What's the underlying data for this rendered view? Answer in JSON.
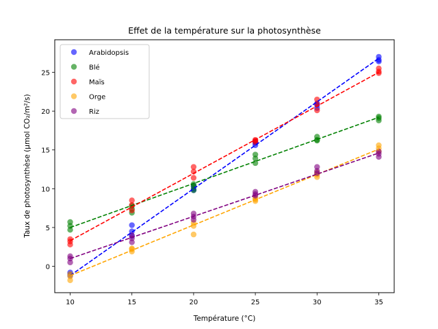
{
  "chart_data": {
    "type": "scatter",
    "title": "Effet de la température sur la photosynthèse",
    "xlabel": "Température (°C)",
    "ylabel": "Taux de photosynthèse (µmol CO₂/m²/s)",
    "xlim": [
      8.75,
      36.25
    ],
    "ylim": [
      -3.4,
      29.2
    ],
    "xticks": [
      10,
      15,
      20,
      25,
      30,
      35
    ],
    "yticks": [
      0,
      5,
      10,
      15,
      20,
      25
    ],
    "grid": false,
    "legend": "top-left",
    "trendlines": "dashed linear fit per series",
    "series": [
      {
        "name": "Arabidopsis",
        "color": "#0000ff",
        "points": [
          [
            10,
            -1.0
          ],
          [
            10,
            -0.8
          ],
          [
            10,
            -1.2
          ],
          [
            15,
            5.3
          ],
          [
            15,
            4.5
          ],
          [
            15,
            3.9
          ],
          [
            20,
            10.4
          ],
          [
            20,
            10.0
          ],
          [
            20,
            9.8
          ],
          [
            25,
            15.6
          ],
          [
            25,
            15.9
          ],
          [
            25,
            16.1
          ],
          [
            30,
            20.8
          ],
          [
            30,
            20.4
          ],
          [
            30,
            21.0
          ],
          [
            35,
            27.0
          ],
          [
            35,
            26.4
          ],
          [
            35,
            26.6
          ]
        ],
        "fit": [
          [
            10,
            -1.2
          ],
          [
            35,
            26.8
          ]
        ]
      },
      {
        "name": "Blé",
        "color": "#008000",
        "points": [
          [
            10,
            5.7
          ],
          [
            10,
            5.2
          ],
          [
            10,
            4.7
          ],
          [
            15,
            7.8
          ],
          [
            15,
            7.4
          ],
          [
            15,
            6.9
          ],
          [
            20,
            10.6
          ],
          [
            20,
            10.3
          ],
          [
            20,
            9.8
          ],
          [
            25,
            14.4
          ],
          [
            25,
            13.9
          ],
          [
            25,
            13.3
          ],
          [
            30,
            16.7
          ],
          [
            30,
            16.3
          ],
          [
            30,
            16.2
          ],
          [
            35,
            19.3
          ],
          [
            35,
            19.1
          ],
          [
            35,
            18.8
          ]
        ],
        "fit": [
          [
            10,
            5.0
          ],
          [
            35,
            19.2
          ]
        ]
      },
      {
        "name": "Maïs",
        "color": "#ff0000",
        "points": [
          [
            10,
            3.5
          ],
          [
            10,
            3.2
          ],
          [
            10,
            2.8
          ],
          [
            15,
            8.5
          ],
          [
            15,
            7.9
          ],
          [
            15,
            7.2
          ],
          [
            20,
            12.8
          ],
          [
            20,
            12.2
          ],
          [
            20,
            11.4
          ],
          [
            25,
            16.3
          ],
          [
            25,
            16.0
          ],
          [
            25,
            16.2
          ],
          [
            30,
            21.5
          ],
          [
            30,
            20.9
          ],
          [
            30,
            20.1
          ],
          [
            35,
            25.5
          ],
          [
            35,
            25.1
          ],
          [
            35,
            24.9
          ]
        ],
        "fit": [
          [
            10,
            3.3
          ],
          [
            35,
            25.0
          ]
        ]
      },
      {
        "name": "Orge",
        "color": "#ffa500",
        "points": [
          [
            10,
            -1.8
          ],
          [
            10,
            -1.0
          ],
          [
            10,
            -1.3
          ],
          [
            15,
            2.3
          ],
          [
            15,
            1.9
          ],
          [
            15,
            2.2
          ],
          [
            20,
            5.2
          ],
          [
            20,
            5.6
          ],
          [
            20,
            4.1
          ],
          [
            25,
            8.6
          ],
          [
            25,
            8.4
          ],
          [
            25,
            8.8
          ],
          [
            30,
            11.5
          ],
          [
            30,
            11.8
          ],
          [
            30,
            12.1
          ],
          [
            35,
            15.6
          ],
          [
            35,
            15.2
          ],
          [
            35,
            14.8
          ]
        ],
        "fit": [
          [
            10,
            -1.2
          ],
          [
            35,
            15.1
          ]
        ]
      },
      {
        "name": "Riz",
        "color": "#800080",
        "points": [
          [
            10,
            0.5
          ],
          [
            10,
            1.0
          ],
          [
            10,
            1.3
          ],
          [
            15,
            3.1
          ],
          [
            15,
            3.6
          ],
          [
            15,
            4.0
          ],
          [
            20,
            6.0
          ],
          [
            20,
            6.4
          ],
          [
            20,
            6.8
          ],
          [
            25,
            9.1
          ],
          [
            25,
            9.3
          ],
          [
            25,
            9.6
          ],
          [
            30,
            12.0
          ],
          [
            30,
            12.3
          ],
          [
            30,
            12.8
          ],
          [
            35,
            14.1
          ],
          [
            35,
            14.5
          ],
          [
            35,
            14.8
          ]
        ],
        "fit": [
          [
            10,
            1.0
          ],
          [
            35,
            14.6
          ]
        ]
      }
    ]
  }
}
